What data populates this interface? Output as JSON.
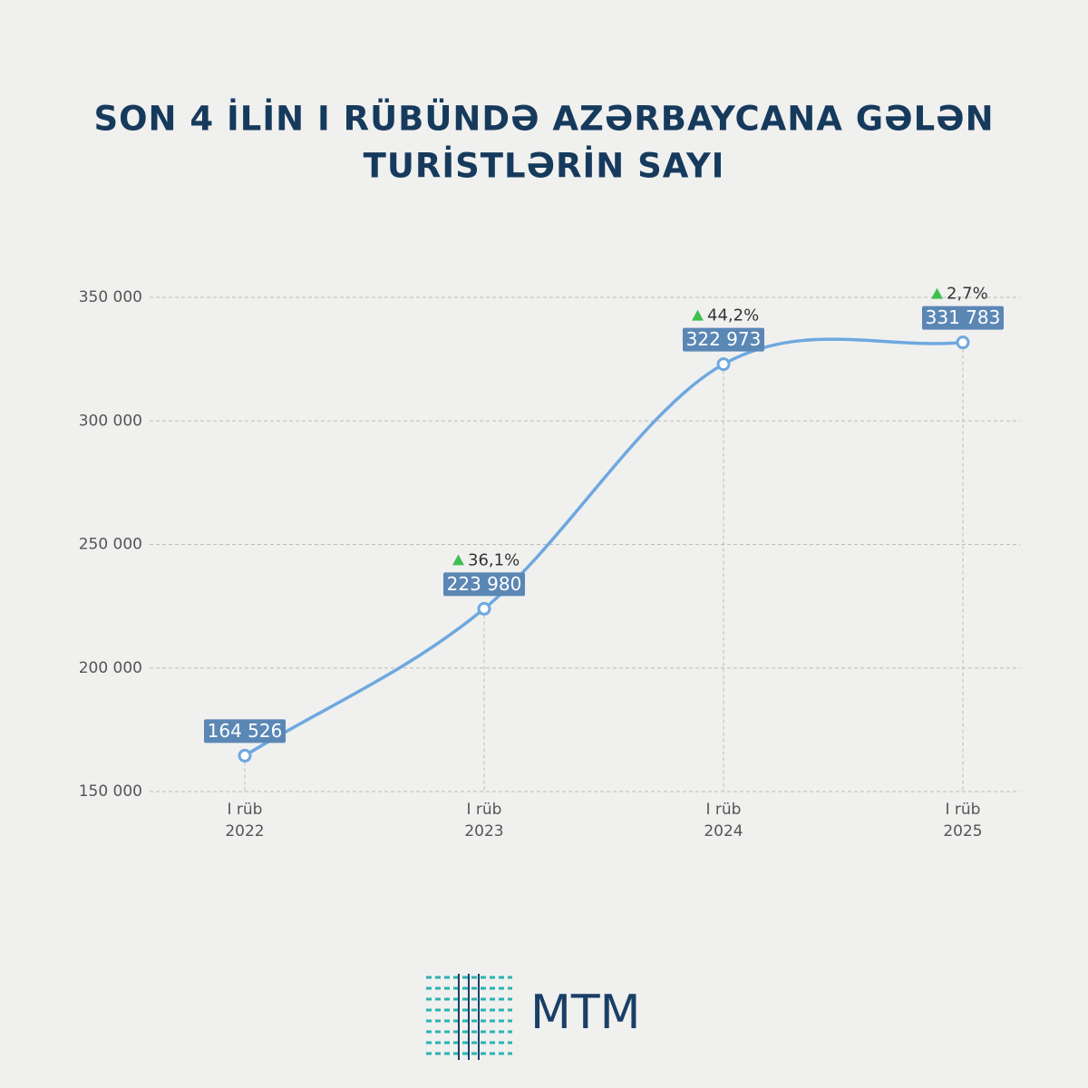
{
  "chart_data": {
    "type": "line",
    "title": [
      "SON 4 İLİN I RÜBÜNDƏ AZƏRBAYCANA GƏLƏN",
      "TURİSTLƏRİN SAYI"
    ],
    "categories": [
      "I rüb\n2022",
      "I rüb\n2023",
      "I rüb\n2024",
      "I rüb\n2025"
    ],
    "series": [
      {
        "name": null,
        "color": "#6ea8e0",
        "values": [
          164526,
          223980,
          322973,
          331783
        ],
        "value_labels": [
          "164 526",
          "223 980",
          "322 973",
          "331 783"
        ],
        "growth_labels": [
          null,
          "36,1%",
          "44,2%",
          "2,7%"
        ]
      }
    ],
    "ylim": [
      150000,
      350000
    ],
    "yticks": [
      {
        "value": 150000,
        "label": "150 000"
      },
      {
        "value": 200000,
        "label": "200 000"
      },
      {
        "value": 250000,
        "label": "250 000"
      },
      {
        "value": 300000,
        "label": "300 000"
      },
      {
        "value": 350000,
        "label": "350 000"
      }
    ],
    "grid": true,
    "logo": "MTM"
  }
}
